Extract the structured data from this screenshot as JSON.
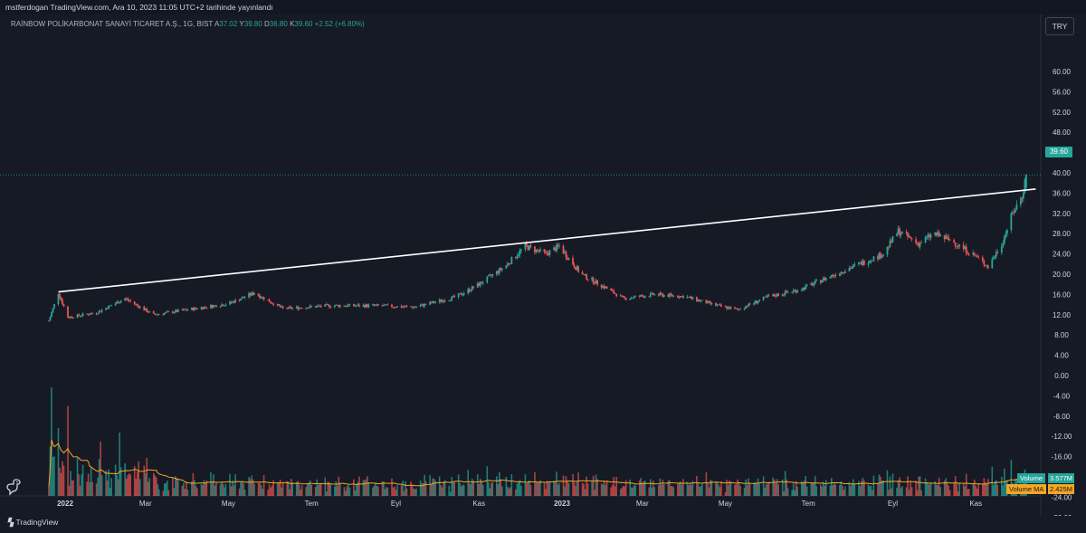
{
  "header": {
    "publish_line": "mstferdogan TradingView.com, Ara 10, 2023 11:05 UTC+2 tarihinde yayınlandı"
  },
  "legend": {
    "symbol": "RAİNBOW POLİKARBONAT SANAYİ TİCARET A.Ş., 1G, BIST",
    "open_label": "A",
    "open": "37.02",
    "high_label": "Y",
    "high": "39.80",
    "low_label": "D",
    "low": "36.80",
    "close_label": "K",
    "close": "39.60",
    "change": "+2.52 (+6.80%)"
  },
  "currency_button": "TRY",
  "last_price_tag": "39.60",
  "volume_tags": {
    "volume": "Volume",
    "volume_value": "3.577M",
    "ma": "Volume MA",
    "ma_value": "2.425M"
  },
  "branding": "TradingView",
  "icons": {
    "logo": "tradingview-logo-icon",
    "dino": "dinosaur-icon"
  },
  "colors": {
    "up": "#26a69a",
    "down": "#ef5350",
    "trendline": "#ffffff",
    "volume_ma": "#f5a623",
    "background": "#161a25"
  },
  "chart_data": {
    "type": "candlestick",
    "title": "RAİNBOW POLİKARBONAT SANAYİ TİCARET A.Ş., 1G, BIST",
    "y_axis_ticks": [
      "60.00",
      "56.00",
      "52.00",
      "48.00",
      "44.00",
      "40.00",
      "36.00",
      "32.00",
      "28.00",
      "24.00",
      "20.00",
      "16.00",
      "12.00",
      "8.00",
      "4.00",
      "0.00",
      "-4.00",
      "-8.00",
      "-12.00",
      "-16.00",
      "-20.00",
      "-24.00",
      "-28.00"
    ],
    "ylim": [
      -28,
      62
    ],
    "x_axis_labels": [
      "2022",
      "Mar",
      "May",
      "Tem",
      "Eyl",
      "Kas",
      "2023",
      "Mar",
      "May",
      "Tem",
      "Eyl",
      "Kas"
    ],
    "x_axis_bold": [
      "2022",
      "2023"
    ],
    "price_path": [
      {
        "x": "2021-12-20",
        "y": 10.8
      },
      {
        "x": "2021-12-27",
        "y": 16.4
      },
      {
        "x": "2022-01-03",
        "y": 11.5
      },
      {
        "x": "2022-01-24",
        "y": 12.4
      },
      {
        "x": "2022-02-14",
        "y": 15.2
      },
      {
        "x": "2022-03-07",
        "y": 12.0
      },
      {
        "x": "2022-04-01",
        "y": 13.0
      },
      {
        "x": "2022-05-01",
        "y": 14.2
      },
      {
        "x": "2022-05-20",
        "y": 16.3
      },
      {
        "x": "2022-06-10",
        "y": 13.2
      },
      {
        "x": "2022-07-15",
        "y": 13.8
      },
      {
        "x": "2022-08-15",
        "y": 13.8
      },
      {
        "x": "2022-09-15",
        "y": 13.5
      },
      {
        "x": "2022-10-15",
        "y": 15.5
      },
      {
        "x": "2022-11-01",
        "y": 18.0
      },
      {
        "x": "2022-11-20",
        "y": 21.5
      },
      {
        "x": "2022-12-05",
        "y": 25.5
      },
      {
        "x": "2022-12-20",
        "y": 24.0
      },
      {
        "x": "2022-12-30",
        "y": 25.5
      },
      {
        "x": "2023-01-15",
        "y": 20.0
      },
      {
        "x": "2023-02-01",
        "y": 17.5
      },
      {
        "x": "2023-02-15",
        "y": 15.2
      },
      {
        "x": "2023-03-10",
        "y": 16.0
      },
      {
        "x": "2023-04-01",
        "y": 15.6
      },
      {
        "x": "2023-04-25",
        "y": 13.8
      },
      {
        "x": "2023-05-10",
        "y": 13.0
      },
      {
        "x": "2023-06-01",
        "y": 15.5
      },
      {
        "x": "2023-06-25",
        "y": 17.0
      },
      {
        "x": "2023-07-25",
        "y": 20.5
      },
      {
        "x": "2023-08-25",
        "y": 24.0
      },
      {
        "x": "2023-09-05",
        "y": 28.5
      },
      {
        "x": "2023-09-20",
        "y": 26.0
      },
      {
        "x": "2023-10-01",
        "y": 28.0
      },
      {
        "x": "2023-10-15",
        "y": 26.5
      },
      {
        "x": "2023-11-01",
        "y": 23.5
      },
      {
        "x": "2023-11-10",
        "y": 21.5
      },
      {
        "x": "2023-11-20",
        "y": 26.0
      },
      {
        "x": "2023-11-28",
        "y": 32.0
      },
      {
        "x": "2023-12-05",
        "y": 35.5
      },
      {
        "x": "2023-12-08",
        "y": 39.6
      }
    ],
    "last": {
      "open": 37.02,
      "high": 39.8,
      "low": 36.8,
      "close": 39.6,
      "change": 2.52,
      "change_pct": 6.8
    },
    "trendline": {
      "from": {
        "x": "2021-12-27",
        "y": 16.5
      },
      "to": {
        "x": "2023-12-15",
        "y": 36.8
      }
    },
    "volume": {
      "last": "3.577M",
      "ma": "2.425M"
    },
    "grid": false
  }
}
